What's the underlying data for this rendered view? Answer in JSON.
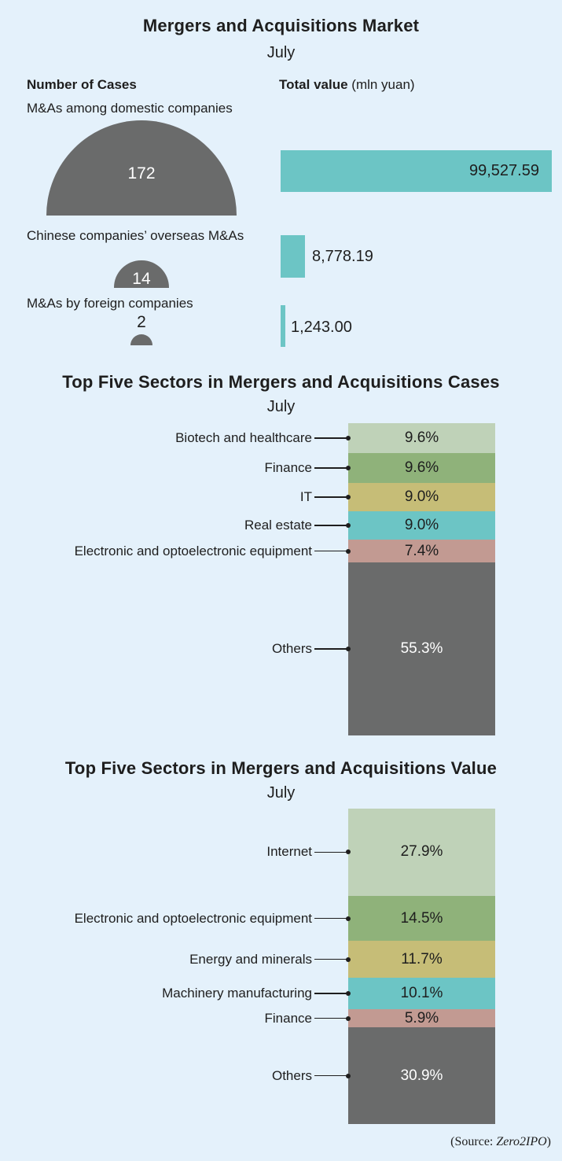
{
  "market": {
    "title": "Mergers and Acquisitions Market",
    "subtitle": "July",
    "cases_header": "Number of Cases",
    "value_header": "Total value",
    "value_unit": "(mln yuan)"
  },
  "sectors_cases": {
    "title": "Top Five Sectors in Mergers and Acquisitions Cases",
    "subtitle": "July"
  },
  "sectors_value": {
    "title": "Top Five Sectors in Mergers and Acquisitions Value",
    "subtitle": "July"
  },
  "source": {
    "prefix": "(Source: ",
    "name": "Zero2IPO",
    "suffix": ")"
  },
  "chart_data": [
    {
      "type": "bar",
      "title": "Mergers and Acquisitions Market",
      "subtitle": "July",
      "categories": [
        "M&As among domestic companies",
        "Chinese companies’ overseas M&As",
        "M&As by foreign companies"
      ],
      "series": [
        {
          "name": "Number of Cases",
          "values": [
            172,
            14,
            2
          ],
          "labels": [
            "172",
            "14",
            "2"
          ],
          "color": "#6a6b6b"
        },
        {
          "name": "Total value (mln yuan)",
          "values": [
            99527.59,
            8778.19,
            1243.0
          ],
          "labels": [
            "99,527.59",
            "8,778.19",
            "1,243.00"
          ],
          "color": "#6cc5c5"
        }
      ]
    },
    {
      "type": "bar",
      "stacked": true,
      "title": "Top Five Sectors in Mergers and Acquisitions Cases",
      "subtitle": "July",
      "categories": [
        "Biotech and healthcare",
        "Finance",
        "IT",
        "Real estate",
        "Electronic and optoelectronic equipment",
        "Others"
      ],
      "values": [
        9.6,
        9.6,
        9.0,
        9.0,
        7.4,
        55.3
      ],
      "labels": [
        "9.6%",
        "9.6%",
        "9.0%",
        "9.0%",
        "7.4%",
        "55.3%"
      ],
      "colors": [
        "#bfd2b8",
        "#8fb27a",
        "#c6bd77",
        "#6cc5c5",
        "#c29a92",
        "#6a6b6b"
      ]
    },
    {
      "type": "bar",
      "stacked": true,
      "title": "Top Five Sectors in Mergers and Acquisitions Value",
      "subtitle": "July",
      "categories": [
        "Internet",
        "Electronic and optoelectronic equipment",
        "Energy and minerals",
        "Machinery manufacturing",
        "Finance",
        "Others"
      ],
      "values": [
        27.9,
        14.5,
        11.7,
        10.1,
        5.9,
        30.9
      ],
      "labels": [
        "27.9%",
        "14.5%",
        "11.7%",
        "10.1%",
        "5.9%",
        "30.9%"
      ],
      "colors": [
        "#bfd2b8",
        "#8fb27a",
        "#c6bd77",
        "#6cc5c5",
        "#c29a92",
        "#6a6b6b"
      ]
    }
  ]
}
